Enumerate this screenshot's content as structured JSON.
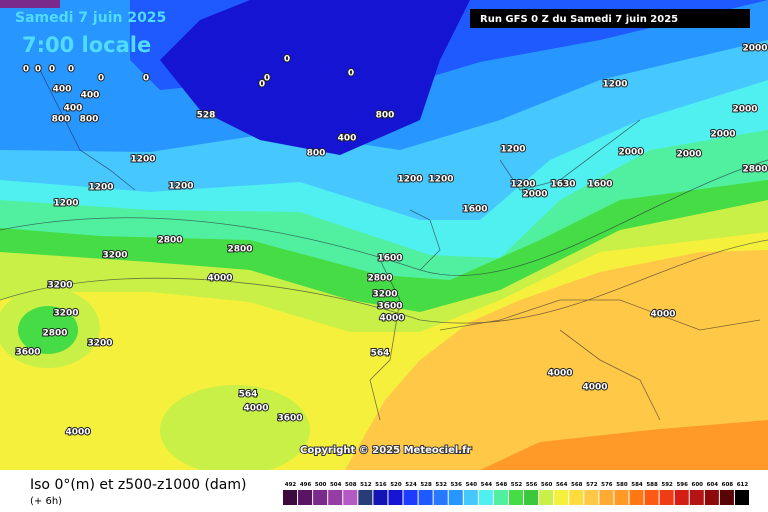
{
  "header": {
    "date": "Samedi 7 juin 2025",
    "time": "7:00 locale",
    "run": "Run GFS 0 Z du Samedi 7 juin 2025"
  },
  "copyright": "Copyright © 2025 Meteociel.fr",
  "footer": {
    "title": "Iso 0°(m) et z500-z1000 (dam)",
    "step": "(+ 6h)"
  },
  "legend": {
    "values": [
      492,
      496,
      500,
      504,
      508,
      512,
      516,
      520,
      524,
      528,
      532,
      536,
      540,
      544,
      548,
      552,
      556,
      560,
      564,
      568,
      572,
      576,
      580,
      584,
      588,
      592,
      596,
      600,
      604,
      608,
      612
    ],
    "colors": [
      "#3c0a3c",
      "#5a1464",
      "#7a2a8a",
      "#963ca5",
      "#b45ac3",
      "#283c78",
      "#1414b4",
      "#1414d2",
      "#1e3cff",
      "#1e5aff",
      "#2878ff",
      "#2896ff",
      "#46c8ff",
      "#50f0f0",
      "#50f0a0",
      "#46dc46",
      "#3cc83c",
      "#c8f046",
      "#f5f03c",
      "#ffdc3c",
      "#ffc846",
      "#ffaa32",
      "#ff9a28",
      "#ff7814",
      "#ff5a14",
      "#f03c14",
      "#d21e14",
      "#b41414",
      "#8c0a0a",
      "#5a0505",
      "#000000"
    ]
  },
  "contour_labels": [
    "0",
    "0",
    "0",
    "0",
    "0",
    "0",
    "0",
    "0",
    "0",
    "0",
    "400",
    "400",
    "400",
    "800",
    "800",
    "800",
    "400",
    "800",
    "528",
    "1200",
    "1200",
    "1200",
    "1200",
    "1200",
    "1200",
    "1200",
    "1200",
    "1200",
    "1600",
    "1600",
    "1600",
    "1630",
    "2000",
    "2000",
    "2000",
    "2000",
    "2000",
    "2000",
    "2800",
    "2800",
    "2800",
    "2800",
    "3200",
    "3200",
    "3200",
    "3200",
    "3200",
    "2800",
    "3600",
    "4000",
    "3600",
    "4000",
    "564",
    "564",
    "4000",
    "3600",
    "4000",
    "4000",
    "4000",
    "4000"
  ]
}
